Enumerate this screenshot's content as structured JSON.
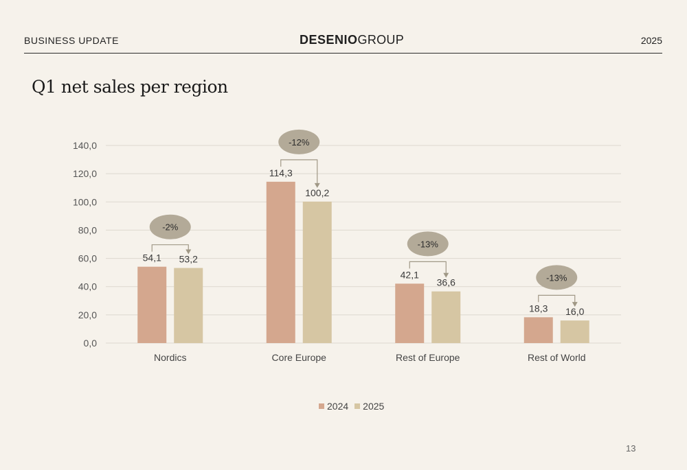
{
  "header": {
    "left_label": "BUSINESS UPDATE",
    "brand_bold": "DESENIO",
    "brand_light": "GROUP",
    "year": "2025"
  },
  "slide_title": "Q1 net sales per region",
  "page_number": "13",
  "colors": {
    "series_2024": "#d4a78e",
    "series_2025": "#d6c6a3",
    "change_bubble": "#b3aa98",
    "gridline": "#ddd8cf",
    "axis_text": "#555555"
  },
  "chart_data": {
    "type": "bar",
    "title": "Q1 net sales per region",
    "categories": [
      "Nordics",
      "Core Europe",
      "Rest of Europe",
      "Rest of World"
    ],
    "series": [
      {
        "name": "2024",
        "values": [
          54.1,
          114.3,
          42.1,
          18.3
        ],
        "labels": [
          "54,1",
          "114,3",
          "42,1",
          "18,3"
        ]
      },
      {
        "name": "2025",
        "values": [
          53.2,
          100.2,
          36.6,
          16.0
        ],
        "labels": [
          "53,2",
          "100,2",
          "36,6",
          "16,0"
        ]
      }
    ],
    "changes": [
      "-2%",
      "-12%",
      "-13%",
      "-13%"
    ],
    "yticks": [
      0,
      20,
      40,
      60,
      80,
      100,
      120,
      140
    ],
    "ytick_labels": [
      "0,0",
      "20,0",
      "40,0",
      "60,0",
      "80,0",
      "100,0",
      "120,0",
      "140,0"
    ],
    "ylim": [
      0,
      140
    ],
    "grid": true,
    "legend_position": "bottom-center"
  }
}
